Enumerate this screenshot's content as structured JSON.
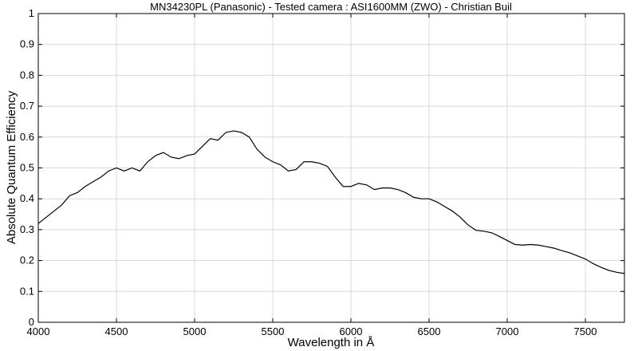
{
  "chart_data": {
    "type": "line",
    "title": "MN34230PL (Panasonic) - Tested camera : ASI1600MM (ZWO) - Christian Buil",
    "x_label": "Wavelength in  Å",
    "y_label": "Absolute Quantum Efficiency",
    "color": "#000000",
    "grid": true,
    "xlim": [
      4000,
      7750
    ],
    "xticks": [
      4000,
      4500,
      5000,
      5500,
      6000,
      6500,
      7000,
      7500
    ],
    "ylim": [
      0,
      1
    ],
    "yticks": [
      0,
      0.1,
      0.2,
      0.3,
      0.4,
      0.5,
      0.6,
      0.7,
      0.8,
      0.9,
      1
    ],
    "x": [
      4000,
      4050,
      4100,
      4150,
      4200,
      4250,
      4300,
      4350,
      4400,
      4450,
      4500,
      4550,
      4600,
      4650,
      4700,
      4750,
      4800,
      4850,
      4900,
      4950,
      5000,
      5050,
      5100,
      5150,
      5200,
      5250,
      5300,
      5350,
      5400,
      5450,
      5500,
      5550,
      5600,
      5650,
      5700,
      5750,
      5800,
      5850,
      5900,
      5950,
      6000,
      6050,
      6100,
      6150,
      6200,
      6250,
      6300,
      6350,
      6400,
      6450,
      6500,
      6550,
      6600,
      6650,
      6700,
      6750,
      6800,
      6850,
      6900,
      6950,
      7000,
      7050,
      7100,
      7150,
      7200,
      7250,
      7300,
      7350,
      7400,
      7450,
      7500,
      7550,
      7600,
      7650,
      7700,
      7750
    ],
    "values": [
      0.32,
      0.34,
      0.36,
      0.38,
      0.41,
      0.42,
      0.44,
      0.455,
      0.47,
      0.49,
      0.5,
      0.49,
      0.5,
      0.49,
      0.52,
      0.54,
      0.55,
      0.535,
      0.53,
      0.54,
      0.545,
      0.57,
      0.595,
      0.59,
      0.615,
      0.62,
      0.615,
      0.6,
      0.56,
      0.535,
      0.52,
      0.51,
      0.49,
      0.495,
      0.52,
      0.52,
      0.515,
      0.505,
      0.47,
      0.44,
      0.44,
      0.45,
      0.445,
      0.43,
      0.435,
      0.435,
      0.43,
      0.42,
      0.405,
      0.4,
      0.4,
      0.39,
      0.375,
      0.36,
      0.34,
      0.315,
      0.298,
      0.295,
      0.29,
      0.278,
      0.265,
      0.252,
      0.25,
      0.252,
      0.25,
      0.245,
      0.24,
      0.232,
      0.225,
      0.215,
      0.205,
      0.19,
      0.178,
      0.168,
      0.162,
      0.158
    ]
  }
}
